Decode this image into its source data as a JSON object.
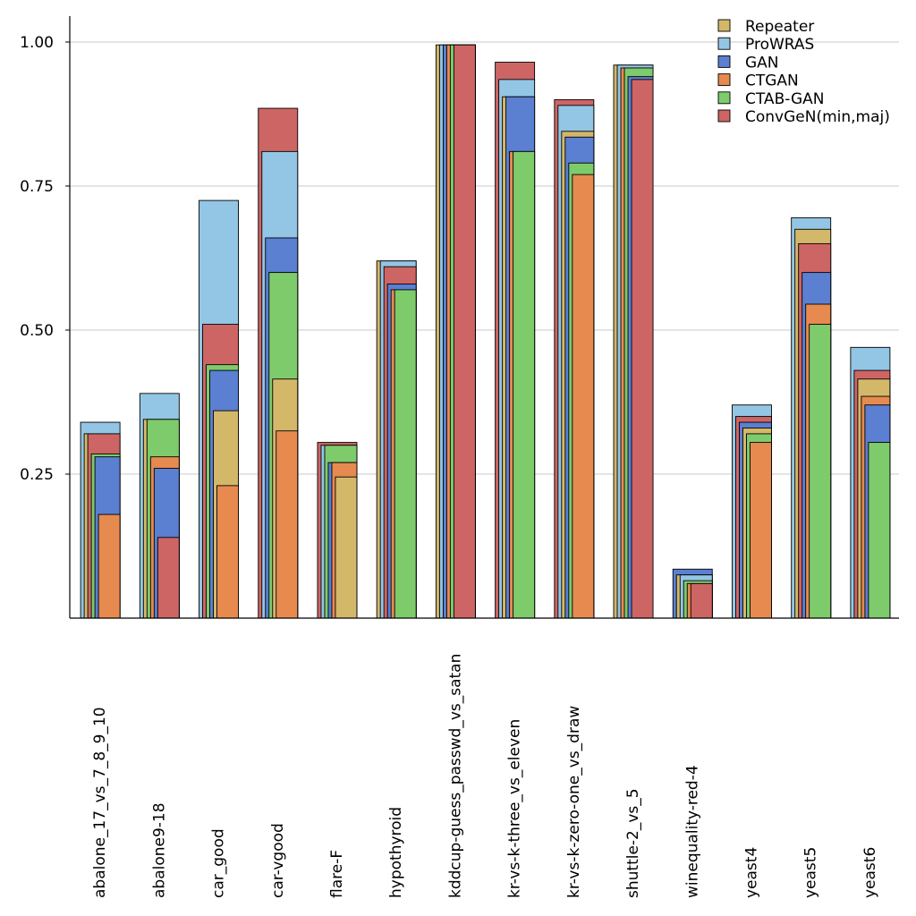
{
  "chart_data": {
    "type": "bar",
    "title": "",
    "xlabel": "",
    "ylabel": "",
    "ylim": [
      0,
      1.0
    ],
    "yticks": [
      0.25,
      0.5,
      0.75,
      1.0
    ],
    "ytick_labels": [
      "0.25",
      "0.50",
      "0.75",
      "1.00"
    ],
    "grid": "horizontal",
    "legend_position": "top-right",
    "layering": "nested overlapping bars; taller bars drawn behind shorter ones",
    "categories": [
      "abalone_17_vs_7_8_9_10",
      "abalone9-18",
      "car_good",
      "car-vgood",
      "flare-F",
      "hypothyroid",
      "kddcup-guess_passwd_vs_satan",
      "kr-vs-k-three_vs_eleven",
      "kr-vs-k-zero-one_vs_draw",
      "shuttle-2_vs_5",
      "winequality-red-4",
      "yeast4",
      "yeast5",
      "yeast6"
    ],
    "series": [
      {
        "name": "Repeater",
        "color": "#d4b86a",
        "values": [
          0.32,
          0.345,
          0.36,
          0.415,
          0.245,
          0.62,
          0.995,
          0.905,
          0.845,
          0.96,
          0.075,
          0.33,
          0.675,
          0.415
        ]
      },
      {
        "name": "ProWRAS",
        "color": "#93c6e4",
        "values": [
          0.34,
          0.39,
          0.725,
          0.81,
          0.3,
          0.62,
          0.995,
          0.935,
          0.89,
          0.96,
          0.075,
          0.37,
          0.695,
          0.47
        ]
      },
      {
        "name": "GAN",
        "color": "#5b7fd1",
        "values": [
          0.28,
          0.26,
          0.43,
          0.66,
          0.27,
          0.58,
          0.995,
          0.905,
          0.835,
          0.94,
          0.085,
          0.34,
          0.6,
          0.37
        ]
      },
      {
        "name": "CTGAN",
        "color": "#e68a50",
        "values": [
          0.18,
          0.28,
          0.23,
          0.325,
          0.27,
          0.57,
          0.995,
          0.81,
          0.77,
          0.955,
          0.06,
          0.305,
          0.545,
          0.385
        ]
      },
      {
        "name": "CTAB-GAN",
        "color": "#7ecb6c",
        "values": [
          0.285,
          0.345,
          0.44,
          0.6,
          0.3,
          0.57,
          0.995,
          0.81,
          0.79,
          0.955,
          0.065,
          0.32,
          0.51,
          0.305
        ]
      },
      {
        "name": "ConvGeN(min,maj)",
        "color": "#cd6565",
        "values": [
          0.32,
          0.14,
          0.51,
          0.885,
          0.305,
          0.61,
          0.995,
          0.965,
          0.9,
          0.935,
          0.06,
          0.35,
          0.65,
          0.43
        ]
      }
    ]
  }
}
